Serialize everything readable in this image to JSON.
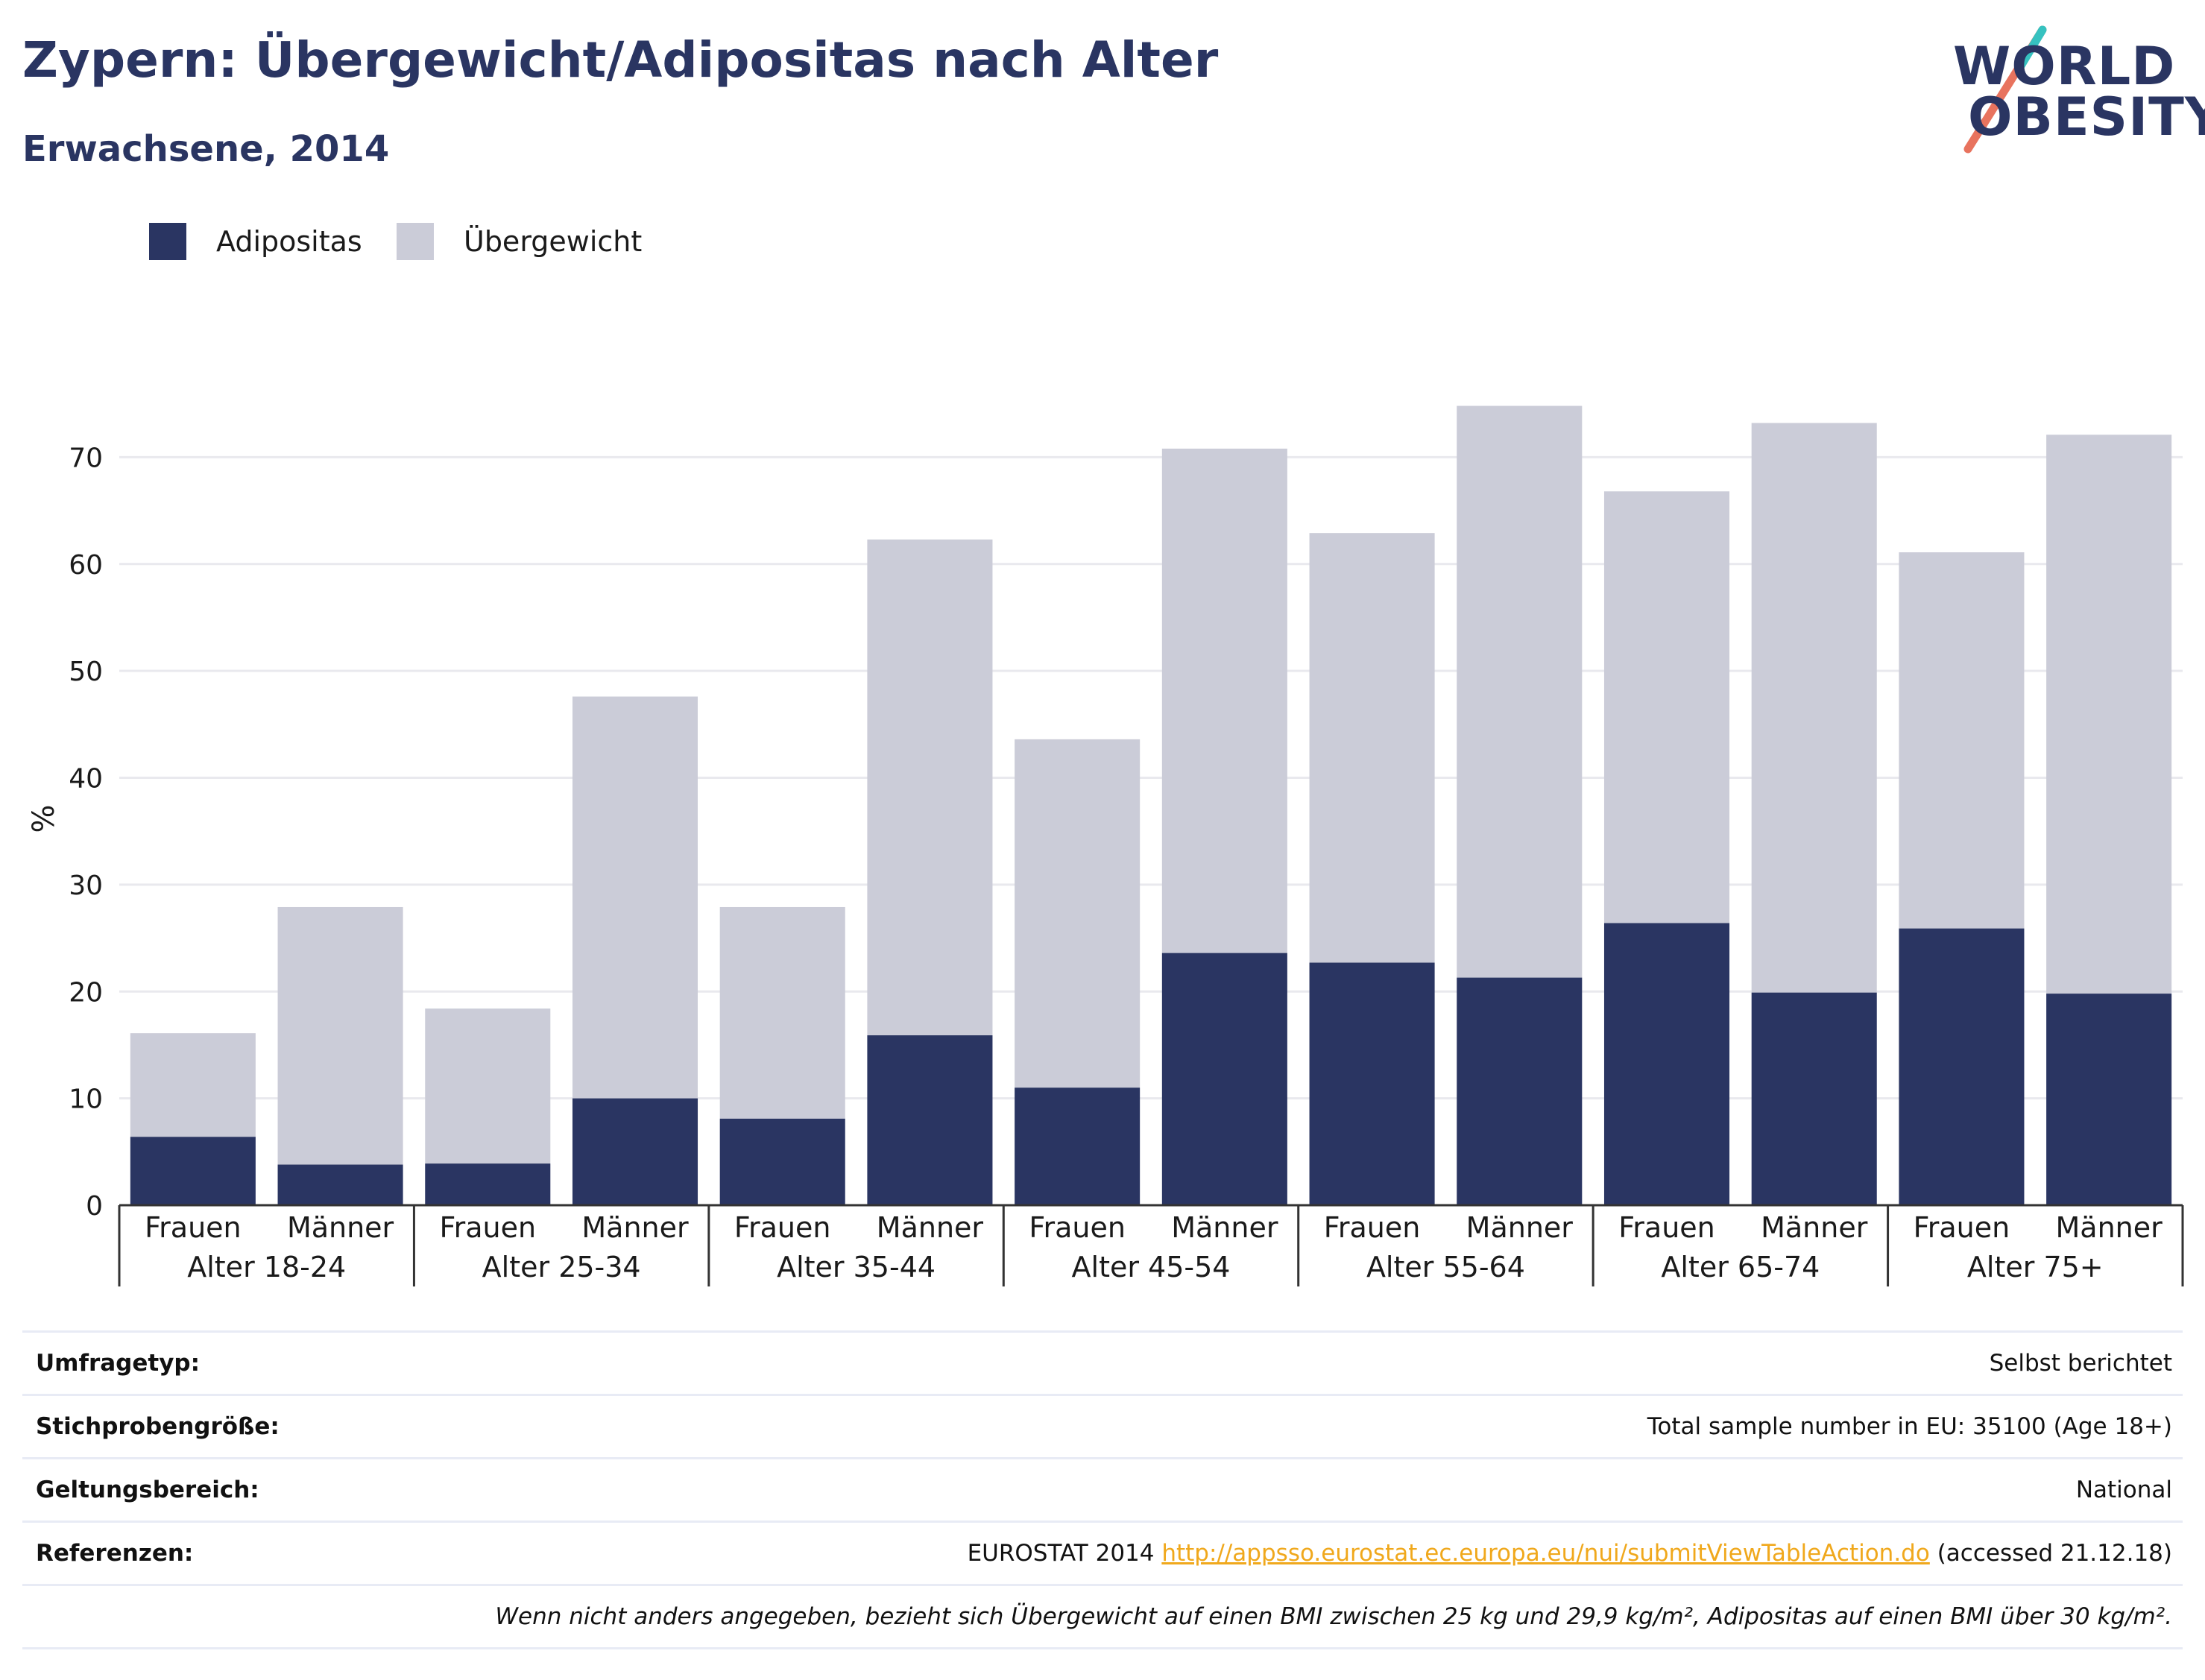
{
  "title": "Zypern: Übergewicht/Adipositas nach Alter",
  "subtitle": "Erwachsene, 2014",
  "logo": {
    "line1": "WORLD",
    "line2": "OBESITY"
  },
  "legend": {
    "obesity_label": "Adipositas",
    "overweight_label": "Übergewicht",
    "placement": "top-left"
  },
  "colors": {
    "obesity": "#2a3562",
    "overweight": "#cbccd8",
    "grid": "#e9e9ee",
    "text": "#2a3562",
    "link": "#f0a81c"
  },
  "chart_data": {
    "type": "bar",
    "stacked": true,
    "ylabel": "%",
    "xlabel": "",
    "ylim": [
      0,
      80
    ],
    "yticks": [
      0,
      10,
      20,
      30,
      40,
      50,
      60,
      70
    ],
    "grid": true,
    "groups": [
      "Alter 18-24",
      "Alter 25-34",
      "Alter 35-44",
      "Alter 45-54",
      "Alter 55-64",
      "Alter 65-74",
      "Alter 75+"
    ],
    "subcategories": [
      "Frauen",
      "Männer"
    ],
    "series": [
      {
        "name": "Adipositas",
        "values": [
          6.4,
          3.8,
          3.9,
          10.0,
          8.1,
          15.9,
          11.0,
          23.6,
          22.7,
          21.3,
          26.4,
          19.9,
          25.9,
          19.8
        ]
      },
      {
        "name": "Übergewicht",
        "values": [
          9.7,
          24.1,
          14.5,
          37.6,
          19.8,
          46.4,
          32.6,
          47.2,
          40.2,
          53.5,
          40.4,
          53.3,
          35.2,
          52.3
        ]
      }
    ]
  },
  "info": {
    "survey_type_label": "Umfragetyp:",
    "survey_type_value": "Selbst berichtet",
    "sample_size_label": "Stichprobengröße:",
    "sample_size_value": "Total sample number in EU: 35100 (Age 18+)",
    "scope_label": "Geltungsbereich:",
    "scope_value": "National",
    "references_label": "Referenzen:",
    "references_prefix": "EUROSTAT 2014",
    "references_link": "http://appsso.eurostat.ec.europa.eu/nui/submitViewTableAction.do",
    "references_suffix": "(accessed 21.12.18)",
    "footnote": "Wenn nicht anders angegeben, bezieht sich Übergewicht auf einen BMI zwischen 25 kg und 29,9 kg/m², Adipositas auf einen BMI über 30 kg/m²."
  }
}
